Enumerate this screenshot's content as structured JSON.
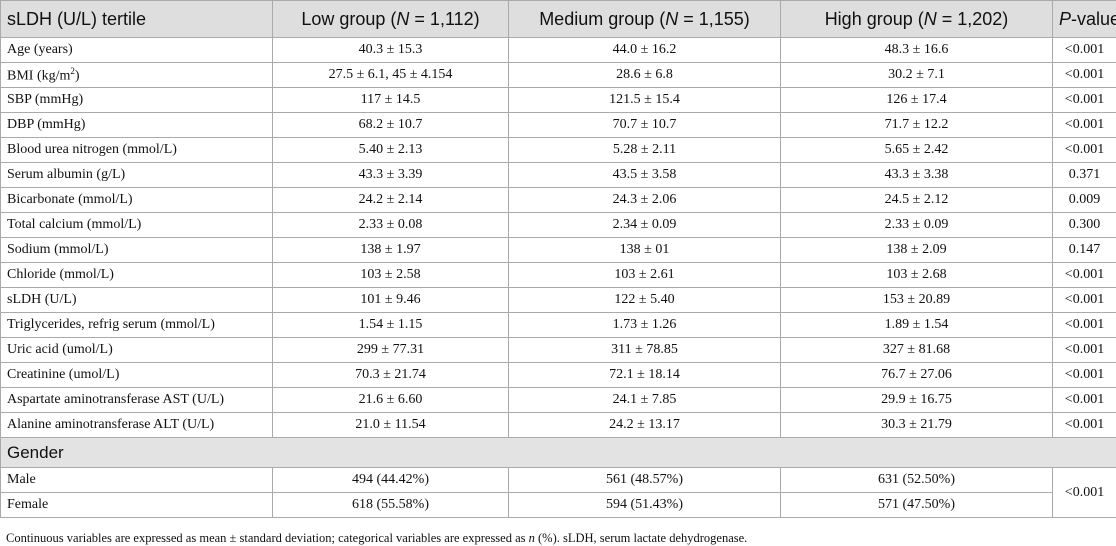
{
  "table": {
    "header": [
      [
        "sLDH (U/L) tertile"
      ],
      [
        "Low group (",
        "N",
        " = 1,112)"
      ],
      [
        "Medium group (",
        "N",
        " = 1,155)"
      ],
      [
        "High group (",
        "N",
        " = 1,202)"
      ],
      [
        "P",
        "-value"
      ]
    ],
    "rows": [
      [
        [
          "Age (years)"
        ],
        "40.3 ± 15.3",
        "44.0 ± 16.2",
        "48.3 ± 16.6",
        "<0.001"
      ],
      [
        [
          "BMI (kg/m",
          "2",
          ")"
        ],
        "27.5 ± 6.1, 45 ± 4.154",
        "28.6 ± 6.8",
        "30.2 ± 7.1",
        "<0.001"
      ],
      [
        [
          "SBP (mmHg)"
        ],
        "117 ± 14.5",
        "121.5 ± 15.4",
        "126 ± 17.4",
        "<0.001"
      ],
      [
        [
          "DBP (mmHg)"
        ],
        "68.2 ± 10.7",
        "70.7 ± 10.7",
        "71.7 ± 12.2",
        "<0.001"
      ],
      [
        [
          "Blood urea nitrogen (mmol/L)"
        ],
        "5.40 ± 2.13",
        "5.28 ± 2.11",
        "5.65 ± 2.42",
        "<0.001"
      ],
      [
        [
          "Serum albumin (g/L)"
        ],
        "43.3 ± 3.39",
        "43.5 ± 3.58",
        "43.3 ± 3.38",
        "0.371"
      ],
      [
        [
          "Bicarbonate (mmol/L)"
        ],
        "24.2 ± 2.14",
        "24.3 ± 2.06",
        "24.5 ± 2.12",
        "0.009"
      ],
      [
        [
          "Total calcium (mmol/L)"
        ],
        "2.33 ± 0.08",
        "2.34 ± 0.09",
        "2.33 ± 0.09",
        "0.300"
      ],
      [
        [
          "Sodium (mmol/L)"
        ],
        "138 ± 1.97",
        "138 ± 01",
        "138 ± 2.09",
        "0.147"
      ],
      [
        [
          "Chloride (mmol/L)"
        ],
        "103 ± 2.58",
        "103 ± 2.61",
        "103 ± 2.68",
        "<0.001"
      ],
      [
        [
          "sLDH (U/L)"
        ],
        "101 ± 9.46",
        "122 ± 5.40",
        "153 ± 20.89",
        "<0.001"
      ],
      [
        [
          "Triglycerides, refrig serum (mmol/L)"
        ],
        "1.54 ± 1.15",
        "1.73 ± 1.26",
        "1.89 ± 1.54",
        "<0.001"
      ],
      [
        [
          "Uric acid (umol/L)"
        ],
        "299 ± 77.31",
        "311 ± 78.85",
        "327 ± 81.68",
        "<0.001"
      ],
      [
        [
          "Creatinine (umol/L)"
        ],
        "70.3 ± 21.74",
        "72.1 ± 18.14",
        "76.7 ± 27.06",
        "<0.001"
      ],
      [
        [
          "Aspartate aminotransferase AST (U/L)"
        ],
        "21.6 ± 6.60",
        "24.1 ± 7.85",
        "29.9 ± 16.75",
        "<0.001"
      ],
      [
        [
          "Alanine aminotransferase ALT (U/L)"
        ],
        "21.0 ± 11.54",
        "24.2 ± 13.17",
        "30.3 ± 21.79",
        "<0.001"
      ]
    ],
    "gender": {
      "title": "Gender",
      "rows": [
        [
          "Male",
          "494 (44.42%)",
          "561 (48.57%)",
          "631 (52.50%)"
        ],
        [
          "Female",
          "618 (55.58%)",
          "594 (51.43%)",
          "571 (47.50%)"
        ]
      ],
      "p_value": "<0.001"
    }
  },
  "footnote": [
    "Continuous variables are expressed as mean ± standard deviation; categorical variables are expressed as ",
    "n",
    " (%). sLDH, serum lactate dehydrogenase."
  ]
}
